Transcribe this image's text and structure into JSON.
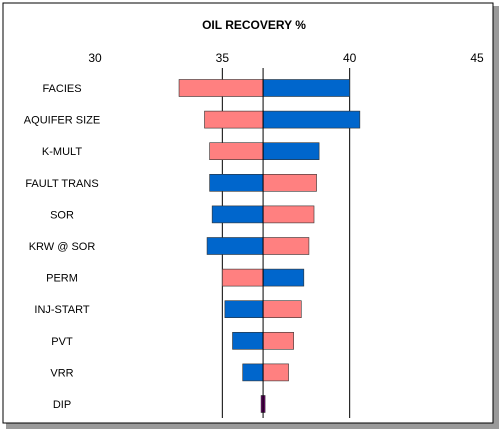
{
  "chart_data": {
    "type": "bar",
    "orientation": "horizontal",
    "subtype": "tornado",
    "title": "OIL RECOVERY %",
    "xlabel": "",
    "ylabel": "",
    "xlim": [
      30,
      45
    ],
    "x_ticks": [
      "30",
      "35",
      "40",
      "45"
    ],
    "x_tick_values": [
      30,
      35,
      40,
      45
    ],
    "gridlines": "vertical",
    "axis_position": "top",
    "base_value": 36.6,
    "categories": [
      "FACIES",
      "AQUIFER SIZE",
      "K-MULT",
      "FAULT TRANS",
      "SOR",
      "KRW @ SOR",
      "PERM",
      "INJ-START",
      "PVT",
      "VRR",
      "DIP"
    ],
    "series": [
      {
        "color": "#ff8080",
        "values": [
          33.3,
          34.3,
          34.5,
          38.7,
          38.6,
          38.4,
          35.0,
          38.1,
          37.8,
          37.6,
          36.6
        ]
      },
      {
        "color": "#0066cc",
        "values": [
          40.0,
          40.4,
          38.8,
          34.5,
          34.6,
          34.4,
          38.2,
          35.1,
          35.4,
          35.8,
          36.6
        ]
      }
    ],
    "dip_marker_color": "#660066"
  }
}
